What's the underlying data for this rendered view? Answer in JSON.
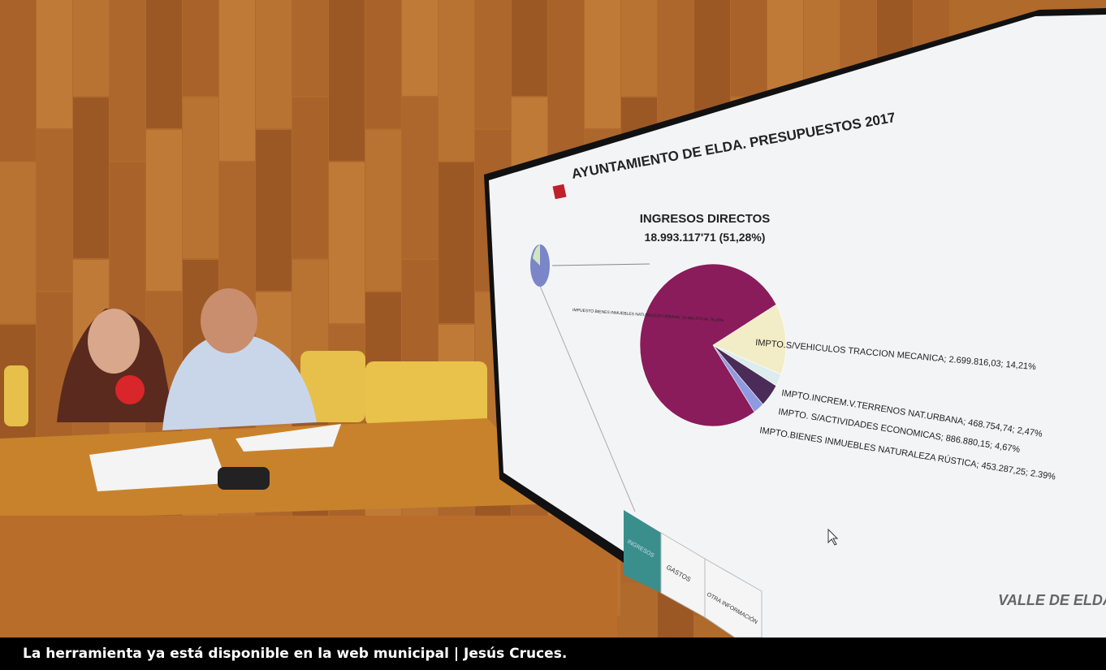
{
  "screen": {
    "header": "AYUNTAMIENTO DE ELDA. PRESUPUESTOS 2017",
    "chart": {
      "type": "pie",
      "title": "INGRESOS DIRECTOS",
      "subtitle": "18.993.117'71 (51,28%)",
      "slices": [
        {
          "label": "IMPTO.S/VEHICULOS TRACCION MECANICA; 2.699.816,03; 14,21%",
          "value": 14.21,
          "color": "#f2edc6"
        },
        {
          "label": "IMPTO.INCREM.V.TERRENOS NAT.URBANA; 468.754,74; 2,47%",
          "value": 2.47,
          "color": "#dcecef"
        },
        {
          "label": "IMPTO. S/ACTIVIDADES ECONOMICAS; 886.880,15; 4,67%",
          "value": 4.67,
          "color": "#4b2b57"
        },
        {
          "label": "IMPTO.BIENES INMUEBLES NATURALEZA RÚSTICA; 453.287,25; 2.39%",
          "value": 2.39,
          "color": "#8f9ae0"
        },
        {
          "label": "IMPUESTO BIENES INMUEBLES NATURALEZA URBANA; 14.484.379,54; 76,26%",
          "value": 76.26,
          "color": "#8a1c5c"
        }
      ]
    },
    "buttons": [
      "INGRESOS",
      "GASTOS",
      "OTRA INFORMACIÓN"
    ],
    "logo": "VALLE DE ELDA"
  },
  "caption": "La herramienta ya está disponible en la web municipal | Jesús Cruces."
}
